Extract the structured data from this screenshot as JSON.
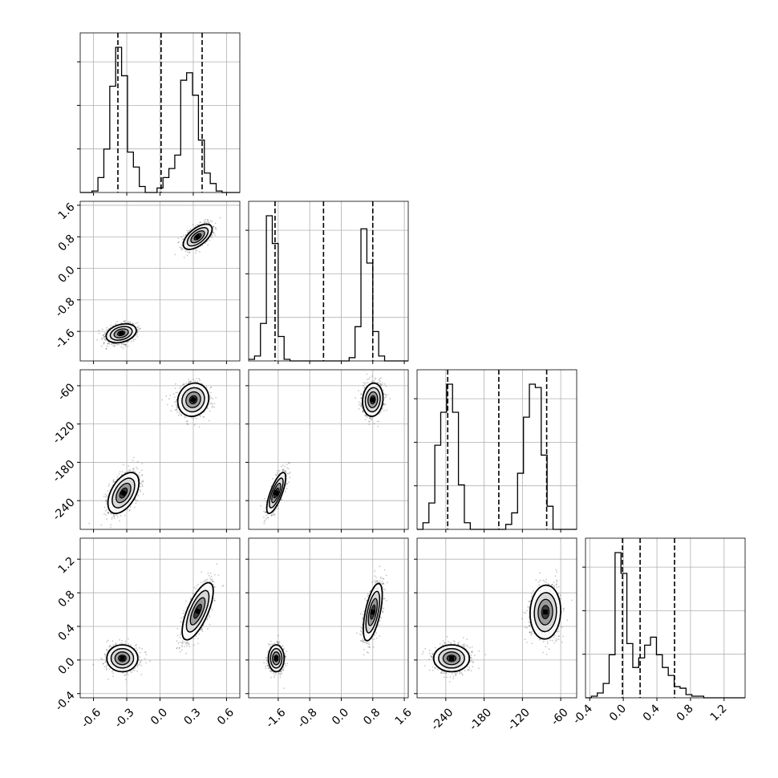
{
  "chart_data": {
    "type": "corner",
    "grid": true,
    "parameters": [
      {
        "range": [
          -0.72,
          0.72
        ],
        "ticks": [
          "-0.6",
          "-0.3",
          "0.0",
          "0.3",
          "0.6"
        ],
        "tick_values": [
          -0.6,
          -0.3,
          0.0,
          0.3,
          0.6
        ],
        "quantiles": [
          -0.38,
          0.01,
          0.38
        ],
        "hist": {
          "edges": [
            -0.72,
            -0.6667,
            -0.6133,
            -0.56,
            -0.5067,
            -0.4533,
            -0.4,
            -0.3467,
            -0.2933,
            -0.24,
            -0.1867,
            -0.1333,
            -0.08,
            -0.0267,
            0.0267,
            0.08,
            0.1333,
            0.1867,
            0.24,
            0.2933,
            0.3467,
            0.4,
            0.4533,
            0.5067,
            0.56,
            0.6133,
            0.6667,
            0.72
          ],
          "counts": [
            0,
            0,
            1,
            10,
            29,
            71,
            97,
            78,
            27,
            17,
            4,
            0,
            0,
            3,
            10,
            16,
            25,
            75,
            80,
            65,
            35,
            13,
            6,
            1,
            0,
            0,
            0
          ]
        }
      },
      {
        "range": [
          -2.35,
          1.7
        ],
        "ticks": [
          "-1.6",
          "-0.8",
          "0.0",
          "0.8",
          "1.6"
        ],
        "tick_values": [
          -1.6,
          -0.8,
          0.0,
          0.8,
          1.6
        ],
        "quantiles": [
          -1.68,
          -0.45,
          0.8
        ],
        "hist": {
          "edges": [
            -2.35,
            -2.2,
            -2.05,
            -1.9,
            -1.75,
            -1.6,
            -1.45,
            -1.3,
            -1.15,
            -1.0,
            -0.85,
            -0.7,
            -0.55,
            -0.4,
            -0.25,
            -0.1,
            0.05,
            0.2,
            0.35,
            0.5,
            0.65,
            0.8,
            0.95,
            1.1,
            1.25,
            1.4,
            1.55,
            1.7
          ],
          "counts": [
            1,
            3,
            23,
            89,
            72,
            15,
            1,
            0,
            0,
            0,
            0,
            0,
            0,
            0,
            0,
            0,
            0,
            2,
            21,
            81,
            60,
            18,
            3,
            0,
            0,
            0,
            0
          ]
        }
      },
      {
        "range": [
          -285,
          -35
        ],
        "ticks": [
          "-240",
          "-180",
          "-120",
          "-60"
        ],
        "tick_values": [
          -240,
          -180,
          -120,
          -60
        ],
        "quantiles": [
          -237,
          -157,
          -82
        ],
        "hist": {
          "edges": [
            -285,
            -275.74,
            -266.48,
            -257.22,
            -247.96,
            -238.7,
            -229.44,
            -220.19,
            -210.93,
            -201.67,
            -192.41,
            -183.15,
            -173.89,
            -164.63,
            -155.37,
            -146.11,
            -136.85,
            -127.59,
            -118.33,
            -109.07,
            -99.81,
            -90.56,
            -81.3,
            -72.04,
            -62.78,
            -53.52,
            -44.26,
            -35
          ],
          "counts": [
            0,
            4,
            16,
            51,
            71,
            88,
            71,
            27,
            4,
            0,
            0,
            0,
            0,
            0,
            0,
            3,
            10,
            34,
            68,
            88,
            86,
            45,
            14,
            0,
            0,
            0,
            0
          ]
        }
      },
      {
        "range": [
          -0.45,
          1.45
        ],
        "ticks": [
          "-0.4",
          "0.0",
          "0.4",
          "0.8",
          "1.2"
        ],
        "tick_values": [
          -0.4,
          0.0,
          0.4,
          0.8,
          1.2
        ],
        "quantiles": [
          -0.01,
          0.2,
          0.61
        ],
        "hist": {
          "edges": [
            -0.45,
            -0.3796,
            -0.3093,
            -0.2389,
            -0.1685,
            -0.0981,
            -0.0278,
            0.0426,
            0.113,
            0.1833,
            0.2537,
            0.3241,
            0.3944,
            0.4648,
            0.5352,
            0.6056,
            0.6759,
            0.7463,
            0.8167,
            0.887,
            0.9574,
            1.0278,
            1.0981,
            1.1685,
            1.2389,
            1.3093,
            1.3796,
            1.45
          ],
          "counts": [
            0,
            1,
            3,
            9,
            27,
            91,
            78,
            34,
            19,
            25,
            33,
            38,
            27,
            19,
            14,
            7,
            6,
            2,
            1,
            1,
            0,
            0,
            0,
            0,
            0,
            0,
            0
          ]
        }
      }
    ],
    "pairs": [
      {
        "row": 1,
        "col": 0,
        "modes": [
          {
            "cx": -0.35,
            "cy": -1.65,
            "sx": 0.068,
            "sy": 0.12,
            "rho": 0.3
          },
          {
            "cx": 0.34,
            "cy": 0.8,
            "sx": 0.065,
            "sy": 0.16,
            "rho": 0.6
          }
        ]
      },
      {
        "row": 2,
        "col": 0,
        "modes": [
          {
            "cx": -0.33,
            "cy": -228,
            "sx": 0.07,
            "sy": 16,
            "rho": 0.5
          },
          {
            "cx": 0.3,
            "cy": -82,
            "sx": 0.07,
            "sy": 13,
            "rho": 0.1
          }
        ]
      },
      {
        "row": 2,
        "col": 1,
        "modes": [
          {
            "cx": -1.65,
            "cy": -228,
            "sx": 0.12,
            "sy": 16,
            "rho": 0.75
          },
          {
            "cx": 0.8,
            "cy": -82,
            "sx": 0.13,
            "sy": 13,
            "rho": 0.1
          }
        ]
      },
      {
        "row": 3,
        "col": 0,
        "modes": [
          {
            "cx": -0.34,
            "cy": 0.02,
            "sx": 0.07,
            "sy": 0.08,
            "rho": 0.0
          },
          {
            "cx": 0.34,
            "cy": 0.58,
            "sx": 0.07,
            "sy": 0.17,
            "rho": 0.7
          }
        ]
      },
      {
        "row": 3,
        "col": 1,
        "modes": [
          {
            "cx": -1.65,
            "cy": 0.02,
            "sx": 0.1,
            "sy": 0.08,
            "rho": 0.0
          },
          {
            "cx": 0.8,
            "cy": 0.57,
            "sx": 0.12,
            "sy": 0.17,
            "rho": 0.6
          }
        ]
      },
      {
        "row": 3,
        "col": 2,
        "modes": [
          {
            "cx": -231,
            "cy": 0.02,
            "sx": 14,
            "sy": 0.08,
            "rho": 0.0
          },
          {
            "cx": -84,
            "cy": 0.57,
            "sx": 12,
            "sy": 0.16,
            "rho": 0.05
          }
        ]
      }
    ]
  }
}
